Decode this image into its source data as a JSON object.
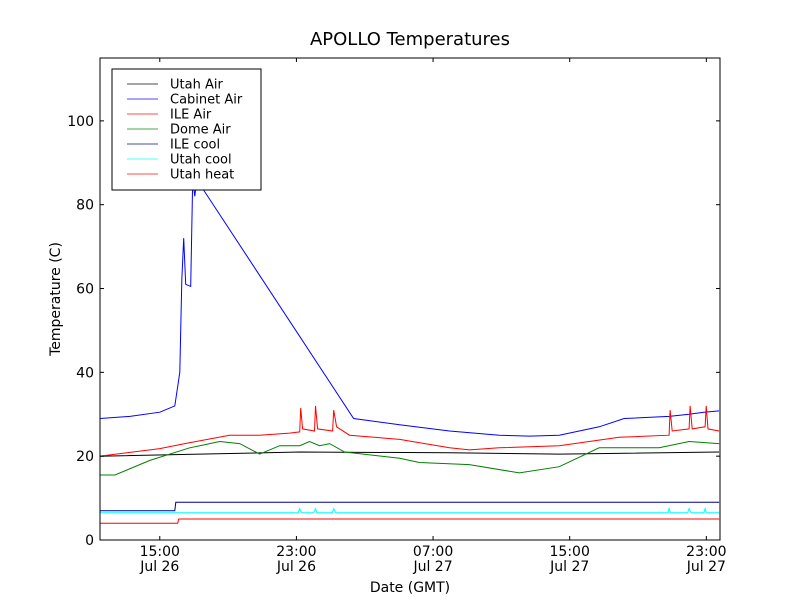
{
  "chart_data": {
    "type": "line",
    "title": "APOLLO Temperatures",
    "xlabel": "Date (GMT)",
    "ylabel": "Temperature (C)",
    "x_units": "hours since Jul 26 00:00 GMT",
    "xlim": [
      11.5,
      47.8
    ],
    "ylim": [
      0,
      115
    ],
    "grid": false,
    "legend_position": "top-left",
    "xticks": [
      {
        "v": 15,
        "l1": "15:00",
        "l2": "Jul 26"
      },
      {
        "v": 23,
        "l1": "23:00",
        "l2": "Jul 26"
      },
      {
        "v": 31,
        "l1": "07:00",
        "l2": "Jul 27"
      },
      {
        "v": 39,
        "l1": "15:00",
        "l2": "Jul 27"
      },
      {
        "v": 47,
        "l1": "23:00",
        "l2": "Jul 27"
      }
    ],
    "yticks": [
      0,
      20,
      40,
      60,
      80,
      100
    ],
    "series": [
      {
        "name": "Utah Air",
        "color": "#000000",
        "x": [
          11.49,
          17.34,
          23.19,
          31.96,
          38.39,
          47.75
        ],
        "y": [
          20,
          20.5,
          21,
          20.8,
          20.5,
          21
        ]
      },
      {
        "name": "Cabinet Air",
        "color": "#0000ff",
        "x": [
          11.49,
          13.25,
          15,
          15.88,
          16.17,
          16.29,
          16.4,
          16.52,
          16.81,
          16.93,
          17.05,
          17.16,
          26.35,
          29.04,
          31.96,
          34.88,
          36.64,
          38.39,
          40.73,
          42.19,
          44.82,
          45.99,
          46.86,
          47.75
        ],
        "y": [
          29,
          29.5,
          30.5,
          32,
          40,
          62,
          72,
          61,
          60.5,
          86,
          82,
          86,
          29,
          27.5,
          26,
          25,
          24.8,
          25,
          27,
          29,
          29.5,
          30,
          30.5,
          30.8
        ]
      },
      {
        "name": "ILE Air",
        "color": "#ff0000",
        "x": [
          11.49,
          15,
          16.46,
          19.09,
          20.85,
          22.6,
          23.19,
          23.25,
          23.36,
          24.06,
          24.12,
          24.24,
          25.12,
          25.18,
          25.35,
          26.11,
          29.04,
          31.96,
          33.13,
          34.88,
          38.39,
          41.9,
          44.82,
          44.88,
          45,
          45.99,
          46.05,
          46.17,
          46.93,
          46.99,
          47.1,
          47.75
        ],
        "y": [
          20,
          21.8,
          23,
          25,
          25,
          25.5,
          25.8,
          31.5,
          26.5,
          26,
          32,
          26.5,
          26,
          31,
          27,
          25,
          24,
          22,
          21.5,
          22,
          22.5,
          24.5,
          25,
          31,
          26,
          26.5,
          32,
          26.5,
          27,
          32,
          26.5,
          26
        ]
      },
      {
        "name": "Dome Air",
        "color": "#008000",
        "x": [
          11.49,
          12.37,
          14.42,
          16.75,
          17.34,
          18.51,
          19.68,
          20.85,
          22.02,
          23.19,
          23.77,
          24.36,
          24.94,
          25.82,
          29.04,
          30.2,
          33.13,
          36.05,
          38.39,
          40.73,
          43.07,
          44.24,
          45.99,
          47.75
        ],
        "y": [
          15.5,
          15.5,
          19,
          22,
          22.5,
          23.5,
          23,
          20.5,
          22.5,
          22.5,
          23.5,
          22.5,
          23,
          21,
          19.5,
          18.5,
          18,
          16,
          17.5,
          22,
          22,
          22,
          23.5,
          23
        ]
      },
      {
        "name": "ILE cool",
        "color": "#000080",
        "x": [
          11.49,
          15.88,
          15.94,
          47.75
        ],
        "y": [
          7,
          7,
          9,
          9
        ]
      },
      {
        "name": "Utah cool",
        "color": "#00ffff",
        "x": [
          11.49,
          23.1,
          23.19,
          23.3,
          24,
          24.12,
          24.2,
          25.1,
          25.18,
          25.3,
          44.75,
          44.82,
          44.9,
          45.9,
          45.99,
          46.1,
          46.85,
          46.93,
          47,
          47.75
        ],
        "y": [
          6.5,
          6.5,
          7.5,
          6.5,
          6.5,
          7.5,
          6.5,
          6.5,
          7.5,
          6.5,
          6.5,
          7.5,
          6.5,
          6.5,
          7.5,
          6.5,
          6.5,
          7.5,
          6.5,
          6.5
        ]
      },
      {
        "name": "Utah heat",
        "color": "#ff0000",
        "x": [
          11.49,
          16.05,
          16.11,
          47.75
        ],
        "y": [
          4,
          4,
          5,
          5
        ]
      }
    ]
  }
}
